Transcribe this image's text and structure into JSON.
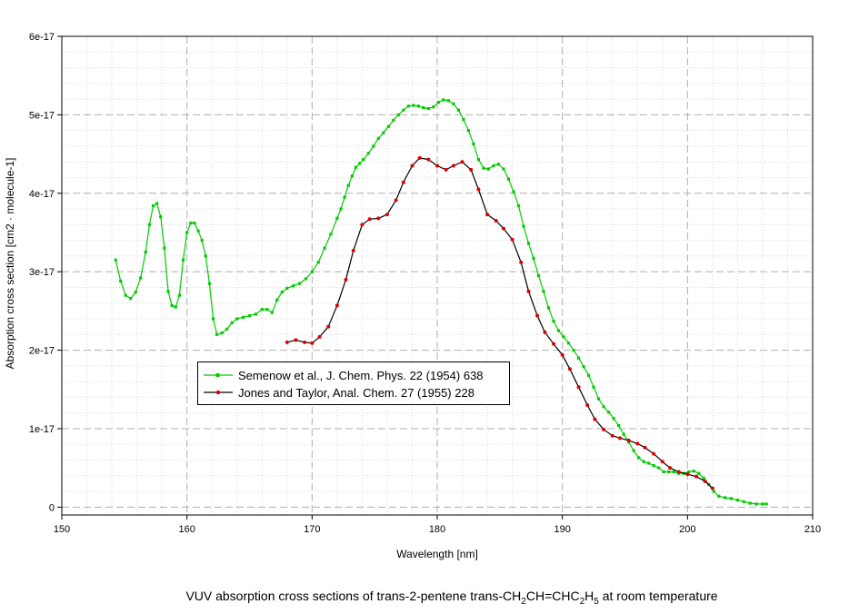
{
  "chart_data": {
    "type": "line",
    "title": "",
    "xlabel": "Wavelength [nm]",
    "ylabel": "Absorption cross section [cm2 · molecule-1]",
    "xlim": [
      150,
      210
    ],
    "ylim": [
      -1e-18,
      6e-17
    ],
    "x_ticks": [
      150,
      160,
      170,
      180,
      190,
      200,
      210
    ],
    "x_tick_labels": [
      "150",
      "160",
      "170",
      "180",
      "190",
      "200",
      "210"
    ],
    "y_ticks": [
      0,
      1e-17,
      2e-17,
      3e-17,
      4e-17,
      5e-17,
      6e-17
    ],
    "y_tick_labels": [
      "0",
      "1e-17",
      "2e-17",
      "3e-17",
      "4e-17",
      "5e-17",
      "6e-17"
    ],
    "grid": true,
    "legend_position": "center-left",
    "series": [
      {
        "name": "Semenow et al., J. Chem. Phys. 22 (1954) 638",
        "color": "#00cc00",
        "marker_color": "#00cc00",
        "x": [
          154.3,
          154.7,
          155.1,
          155.5,
          155.9,
          156.3,
          156.7,
          157.0,
          157.3,
          157.6,
          157.9,
          158.2,
          158.5,
          158.8,
          159.1,
          159.4,
          159.7,
          160.0,
          160.3,
          160.6,
          160.9,
          161.2,
          161.5,
          161.8,
          162.1,
          162.4,
          162.8,
          163.2,
          163.6,
          164.0,
          164.5,
          165.0,
          165.5,
          166.0,
          166.4,
          166.8,
          167.2,
          167.6,
          168.0,
          168.5,
          169.0,
          169.5,
          170.0,
          170.5,
          171.0,
          171.5,
          172.0,
          172.3,
          172.6,
          172.9,
          173.2,
          173.5,
          173.8,
          174.1,
          174.5,
          174.9,
          175.3,
          175.7,
          176.1,
          176.5,
          176.9,
          177.3,
          177.7,
          178.1,
          178.5,
          178.9,
          179.3,
          179.7,
          180.1,
          180.5,
          180.9,
          181.3,
          181.7,
          182.1,
          182.5,
          182.9,
          183.3,
          183.7,
          184.1,
          184.5,
          184.9,
          185.3,
          185.7,
          186.1,
          186.5,
          186.9,
          187.3,
          187.7,
          188.1,
          188.5,
          188.9,
          189.3,
          189.7,
          190.1,
          190.5,
          190.9,
          191.3,
          191.7,
          192.1,
          192.5,
          192.9,
          193.3,
          193.7,
          194.1,
          194.5,
          194.9,
          195.3,
          195.7,
          196.1,
          196.5,
          196.9,
          197.3,
          197.7,
          198.1,
          198.5,
          198.9,
          199.3,
          199.7,
          200.1,
          200.5,
          200.9,
          201.3,
          201.7,
          202.1,
          202.5,
          203.0,
          203.5,
          204.0,
          204.5,
          205.0,
          205.5,
          206.0,
          206.3
        ],
        "y": [
          3.15e-17,
          2.88e-17,
          2.7e-17,
          2.66e-17,
          2.74e-17,
          2.92e-17,
          3.25e-17,
          3.6e-17,
          3.84e-17,
          3.87e-17,
          3.7e-17,
          3.3e-17,
          2.75e-17,
          2.57e-17,
          2.55e-17,
          2.7e-17,
          3.15e-17,
          3.5e-17,
          3.62e-17,
          3.62e-17,
          3.52e-17,
          3.4e-17,
          3.2e-17,
          2.85e-17,
          2.4e-17,
          2.2e-17,
          2.22e-17,
          2.27e-17,
          2.35e-17,
          2.4e-17,
          2.42e-17,
          2.44e-17,
          2.46e-17,
          2.52e-17,
          2.52e-17,
          2.48e-17,
          2.64e-17,
          2.74e-17,
          2.79e-17,
          2.82e-17,
          2.85e-17,
          2.91e-17,
          3e-17,
          3.12e-17,
          3.3e-17,
          3.48e-17,
          3.68e-17,
          3.8e-17,
          3.95e-17,
          4.1e-17,
          4.22e-17,
          4.33e-17,
          4.38e-17,
          4.43e-17,
          4.51e-17,
          4.6e-17,
          4.7e-17,
          4.77e-17,
          4.85e-17,
          4.93e-17,
          5e-17,
          5.06e-17,
          5.11e-17,
          5.12e-17,
          5.11e-17,
          5.09e-17,
          5.08e-17,
          5.1e-17,
          5.16e-17,
          5.19e-17,
          5.18e-17,
          5.14e-17,
          5.06e-17,
          4.94e-17,
          4.8e-17,
          4.63e-17,
          4.43e-17,
          4.32e-17,
          4.31e-17,
          4.35e-17,
          4.37e-17,
          4.31e-17,
          4.18e-17,
          4.02e-17,
          3.84e-17,
          3.58e-17,
          3.36e-17,
          3.17e-17,
          2.95e-17,
          2.75e-17,
          2.54e-17,
          2.37e-17,
          2.25e-17,
          2.17e-17,
          2.09e-17,
          2e-17,
          1.9e-17,
          1.79e-17,
          1.68e-17,
          1.53e-17,
          1.38e-17,
          1.28e-17,
          1.21e-17,
          1.13e-17,
          1.04e-17,
          9.3e-18,
          8.3e-18,
          7.2e-18,
          6.3e-18,
          5.8e-18,
          5.6e-18,
          5.3e-18,
          5e-18,
          4.5e-18,
          4.5e-18,
          4.5e-18,
          4.3e-18,
          4.3e-18,
          4.5e-18,
          4.6e-18,
          4.3e-18,
          3.7e-18,
          2.9e-18,
          2e-18,
          1.4e-18,
          1.2e-18,
          1.1e-18,
          9e-19,
          7e-19,
          5e-19,
          4e-19,
          4e-19,
          4e-19
        ]
      },
      {
        "name": "Jones and Taylor, Anal. Chem. 27 (1955) 228",
        "color": "#000000",
        "marker_color": "#dd0000",
        "x": [
          168.0,
          168.7,
          169.4,
          170.0,
          170.6,
          171.3,
          172.0,
          172.7,
          173.3,
          174.0,
          174.6,
          175.3,
          176.0,
          176.7,
          177.3,
          178.0,
          178.6,
          179.3,
          180.0,
          180.7,
          181.3,
          182.0,
          182.7,
          183.3,
          184.0,
          184.7,
          185.3,
          186.0,
          186.7,
          187.3,
          188.0,
          188.6,
          189.3,
          190.0,
          190.6,
          191.3,
          192.0,
          192.6,
          193.3,
          194.0,
          194.6,
          195.3,
          196.0,
          196.6,
          197.3,
          198.0,
          198.6,
          199.3,
          200.0,
          200.7,
          201.4,
          202.0
        ],
        "y": [
          2.1e-17,
          2.13e-17,
          2.1e-17,
          2.09e-17,
          2.17e-17,
          2.3e-17,
          2.57e-17,
          2.9e-17,
          3.27e-17,
          3.6e-17,
          3.67e-17,
          3.68e-17,
          3.73e-17,
          3.91e-17,
          4.14e-17,
          4.35e-17,
          4.45e-17,
          4.43e-17,
          4.35e-17,
          4.3e-17,
          4.35e-17,
          4.4e-17,
          4.3e-17,
          4.05e-17,
          3.73e-17,
          3.65e-17,
          3.55e-17,
          3.41e-17,
          3.12e-17,
          2.75e-17,
          2.44e-17,
          2.23e-17,
          2.08e-17,
          1.94e-17,
          1.76e-17,
          1.53e-17,
          1.3e-17,
          1.12e-17,
          9.9e-18,
          9.1e-18,
          8.8e-18,
          8.5e-18,
          8.1e-18,
          7.6e-18,
          6.8e-18,
          5.8e-18,
          5e-18,
          4.5e-18,
          4.2e-18,
          3.9e-18,
          3.3e-18,
          2.4e-18
        ]
      }
    ]
  },
  "caption": {
    "prefix": "VUV absorption cross sections of trans-2-pentene trans-CH",
    "s1": "2",
    "mid1": "CH=CHC",
    "s2": "2",
    "mid2": "H",
    "s3": "5",
    "suffix": " at room temperature"
  }
}
